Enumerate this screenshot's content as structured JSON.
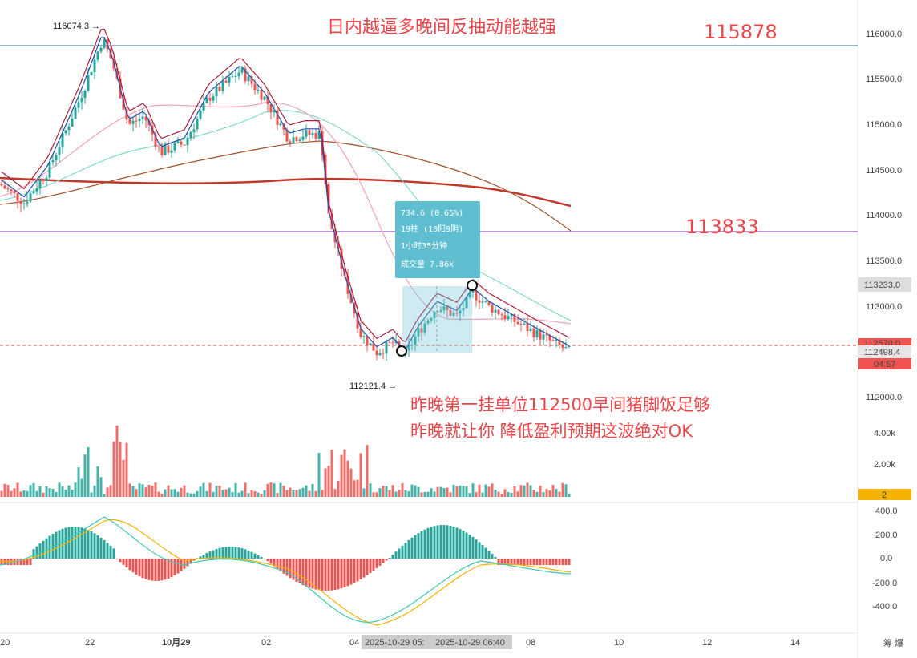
{
  "annotations": {
    "top_note": "日内越逼多晚间反抽动能越强",
    "bottom_note_1": "昨晚第一挂单位112500早间猪脚饭足够",
    "bottom_note_2": "昨晚就让你 降低盈利预期这波绝对OK"
  },
  "levels": [
    {
      "value": 115878,
      "label": "115878",
      "color": "#2f6e8f"
    },
    {
      "value": 113833,
      "label": "113833",
      "color": "#7b2fa8"
    }
  ],
  "high_marker": "116074.3",
  "low_marker": "112121.4",
  "measure_box": {
    "line1": "734.6 (0.65%)",
    "line2": "19柱 (10阳9阴)",
    "line3": "1小时35分钟",
    "line4": "成交量 7.86k"
  },
  "price_axis": {
    "ticks": [
      "116000.0",
      "115500.0",
      "115000.0",
      "114500.0",
      "114000.0",
      "113500.0",
      "113000.0",
      "112000.0"
    ],
    "tag_upper": "113233.0",
    "tag_mid": "112570.0",
    "tag_last": "112498.4",
    "tag_countdown": "04:57"
  },
  "volume_axis": {
    "ticks": [
      "4.00k",
      "2.00k"
    ],
    "tag": "2"
  },
  "macd_axis": {
    "ticks": [
      "400.0",
      "200.0",
      "0.0",
      "-200.0",
      "-400.0"
    ]
  },
  "time_axis": {
    "ticks": [
      "20",
      "22",
      "10月29",
      "02",
      "04",
      "08",
      "10",
      "12",
      "14"
    ],
    "cursor_1": "2025-10-29 05:",
    "cursor_2": "2025-10-29 06:40",
    "corner": "筹 爆"
  },
  "colors": {
    "up": "#26a69a",
    "down": "#ef5350",
    "ma_long": "#c0392b",
    "ma_brown": "#a0522d"
  },
  "chart_data": {
    "type": "candlestick",
    "price_range": [
      111600,
      116300
    ],
    "y_ticks": [
      112000,
      113000,
      113500,
      114000,
      114500,
      115000,
      115500,
      116000
    ],
    "x_ticks": [
      "20",
      "22",
      "10月29",
      "02",
      "04",
      "08",
      "10",
      "12",
      "14"
    ],
    "key_points": [
      {
        "label": "high",
        "value": 116074.3
      },
      {
        "label": "low",
        "value": 112121.4
      },
      {
        "label": "last",
        "value": 112498.4
      }
    ],
    "horizontal_lines": [
      115878,
      113833
    ],
    "volume_range": [
      0,
      5500
    ],
    "macd_range": [
      -500,
      450
    ]
  }
}
